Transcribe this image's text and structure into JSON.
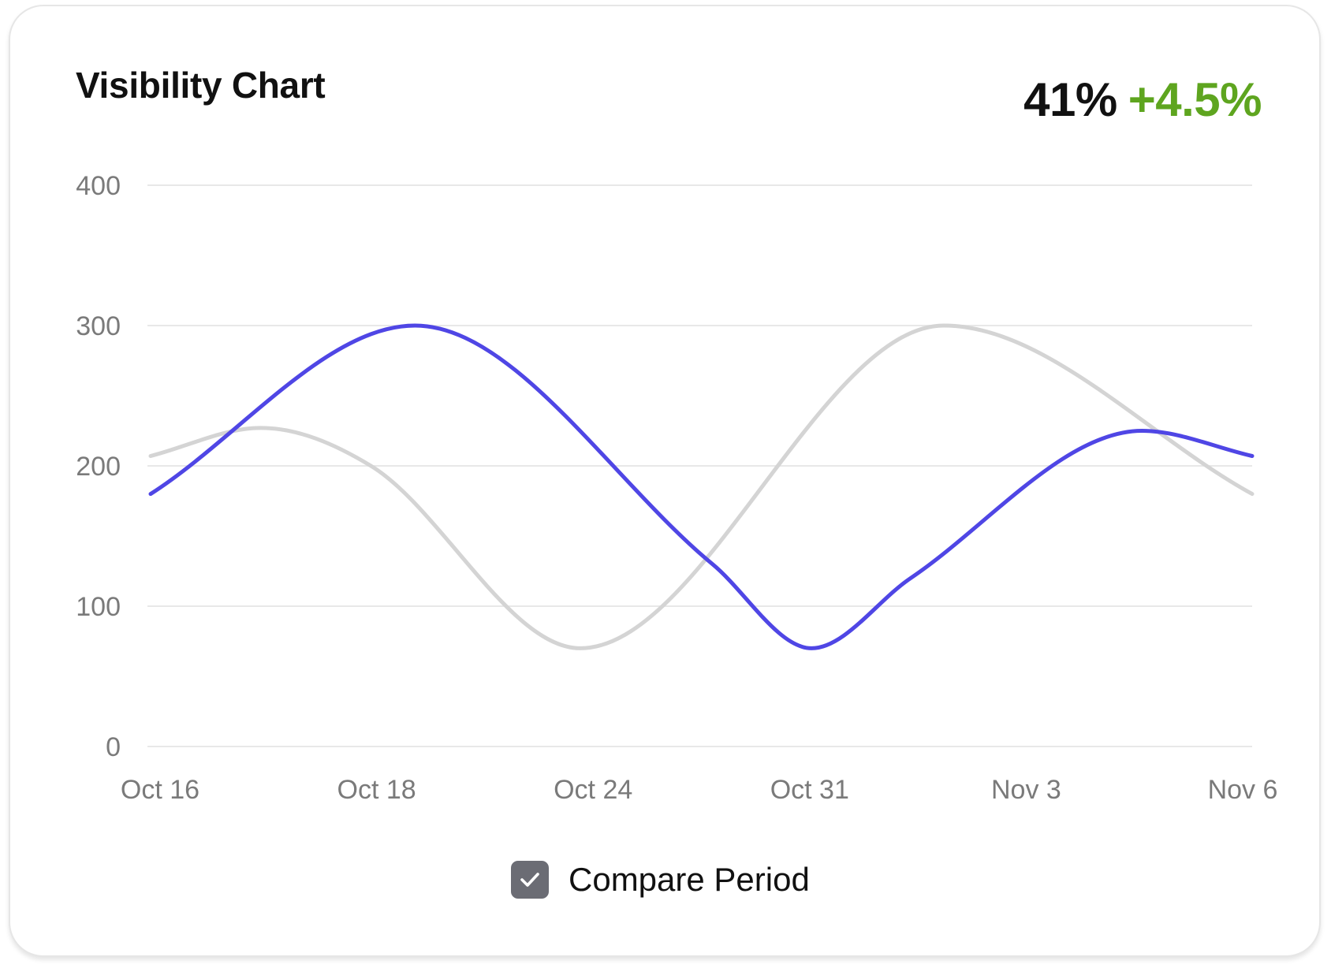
{
  "card": {
    "title": "Visibility Chart",
    "metric_value": "41%",
    "metric_change": "+4.5%"
  },
  "legend": {
    "compare_label": "Compare Period",
    "compare_checked": true,
    "checkbox_icon": "check-icon"
  },
  "colors": {
    "primary_series": "#4f46e5",
    "compare_series": "#d4d4d4",
    "change_positive": "#5ea51f",
    "checkbox": "#6b6c74"
  },
  "chart_data": {
    "type": "line",
    "title": "",
    "xlabel": "",
    "ylabel": "",
    "ylim": [
      0,
      400
    ],
    "yticks": [
      0,
      100,
      200,
      300,
      400
    ],
    "x_tick_labels": [
      "Oct 16",
      "Oct 18",
      "Oct 24",
      "Oct 31",
      "Nov 3",
      "Nov 6"
    ],
    "grid": true,
    "series": [
      {
        "name": "",
        "color": "#4f46e5",
        "points": [
          [
            0.0,
            180
          ],
          [
            1.2,
            300
          ],
          [
            2.55,
            130
          ],
          [
            3.0,
            70
          ],
          [
            3.45,
            120
          ],
          [
            4.5,
            225
          ],
          [
            5.0,
            207
          ]
        ]
      },
      {
        "name": "",
        "color": "#d4d4d4",
        "points": [
          [
            0.0,
            207
          ],
          [
            0.5,
            227
          ],
          [
            1.0,
            200
          ],
          [
            1.95,
            70
          ],
          [
            3.6,
            300
          ],
          [
            5.0,
            180
          ]
        ]
      }
    ]
  }
}
